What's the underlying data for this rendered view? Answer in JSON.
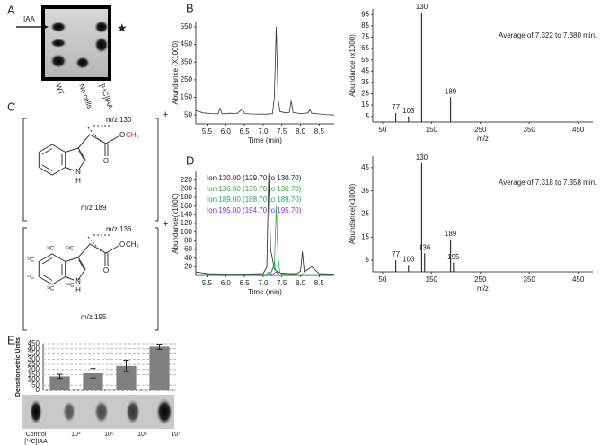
{
  "panel_labels": [
    "A",
    "B",
    "C",
    "D",
    "E"
  ],
  "panel_a": {
    "marker": "IAA",
    "lanes": [
      "WT",
      "No cells",
      "[¹⁴C]IAA"
    ],
    "star": "★"
  },
  "panel_c": {
    "structures": [
      {
        "fragment": "m/z 130",
        "parent": "m/z 189",
        "ester": "O",
        "methyl": "CH₃",
        "carbonyl": "O",
        "n": "N",
        "h": "H",
        "charge": "+"
      },
      {
        "fragment": "m/z 136",
        "parent": "m/z 195",
        "ester": "O",
        "methyl": "CH₃",
        "carbonyl": "O",
        "n": "N",
        "h": "H",
        "charge": "+",
        "isotopes": [
          "¹³C",
          "¹³C",
          "¹³C",
          "¹³C",
          "¹³C",
          "¹³C"
        ]
      }
    ]
  },
  "panel_e": {
    "control": "Control",
    "control_sub": "[¹⁴C]IAA"
  },
  "chart_data": [
    {
      "type": "line",
      "ylabel": "Abundance (X1000)",
      "xlabel": "Time (min)",
      "color": "#333333",
      "x": [
        5.2,
        5.4,
        5.6,
        5.8,
        5.85,
        5.9,
        6.1,
        6.3,
        6.45,
        6.5,
        6.7,
        6.9,
        7.1,
        7.25,
        7.3,
        7.35,
        7.4,
        7.45,
        7.6,
        7.7,
        7.75,
        7.8,
        8.0,
        8.2,
        8.25,
        8.3,
        8.5,
        8.7,
        8.9
      ],
      "values": [
        75,
        62,
        58,
        57,
        90,
        57,
        60,
        58,
        85,
        58,
        56,
        55,
        55,
        58,
        150,
        550,
        140,
        70,
        62,
        65,
        130,
        65,
        58,
        62,
        80,
        60,
        56,
        52,
        50
      ],
      "xlim": [
        5.2,
        8.9
      ],
      "ylim": [
        0,
        580
      ],
      "xticks": [
        5.5,
        {
          "value": 6,
          "label": "6.0"
        },
        6.5,
        {
          "value": 7,
          "label": "7.0"
        },
        7.5,
        {
          "value": 8,
          "label": "8.0"
        },
        8.5
      ],
      "yticks": [
        50,
        150,
        250,
        350,
        450,
        550
      ]
    },
    {
      "type": "stem",
      "ylabel": "Abundance (x1000)",
      "xlabel": "m/z",
      "annotation": "Average of 7.322 to 7.380 min.",
      "color": "#333333",
      "x": [
        77,
        103,
        130,
        189
      ],
      "values": [
        8,
        5,
        97,
        22
      ],
      "xlim": [
        30,
        480
      ],
      "ylim": [
        0,
        100
      ],
      "xticks": [
        50,
        150,
        250,
        350,
        450
      ],
      "yticks": [
        5,
        15,
        25,
        35,
        45,
        55,
        65,
        75,
        85,
        95
      ]
    },
    {
      "type": "line",
      "ylabel": "Abundance(x1000)",
      "xlabel": "Time (min)",
      "x": [
        5.2,
        5.5,
        6.0,
        6.5,
        7.0,
        7.1,
        7.15,
        7.2,
        7.3,
        7.35,
        7.4,
        7.45,
        7.5,
        7.7,
        7.9,
        8.0,
        8.05,
        8.1,
        8.3,
        8.5,
        8.9
      ],
      "series": [
        {
          "name": "Ion 130.00 (129.70 to 130.70)",
          "color": "#222222",
          "values": [
            8,
            4,
            3,
            3,
            4,
            20,
            235,
            60,
            15,
            10,
            8,
            6,
            5,
            4,
            4,
            10,
            55,
            8,
            20,
            4,
            3
          ]
        },
        {
          "name": "Ion 136.00 (135.70 to 136.70)",
          "color": "#2fb02f",
          "values": [
            2,
            2,
            2,
            2,
            2,
            3,
            8,
            5,
            20,
            160,
            40,
            5,
            3,
            2,
            2,
            2,
            3,
            2,
            2,
            2,
            2
          ]
        },
        {
          "name": "Ion 189.00 (188.70 to 189.70)",
          "color": "#1aa58a",
          "values": [
            1,
            1,
            1,
            1,
            1,
            2,
            5,
            3,
            30,
            10,
            3,
            1,
            1,
            1,
            1,
            1,
            2,
            1,
            1,
            1,
            1
          ]
        },
        {
          "name": "Ion 195.00 (194.70 to 195.70)",
          "color": "#8a2be2",
          "values": [
            1,
            1,
            1,
            1,
            1,
            1,
            2,
            2,
            5,
            8,
            3,
            1,
            1,
            1,
            1,
            1,
            1,
            1,
            1,
            1,
            1
          ]
        }
      ],
      "xlim": [
        5.2,
        8.9
      ],
      "ylim": [
        0,
        240
      ],
      "xticks": [
        5.5,
        {
          "value": 6,
          "label": "6.0"
        },
        6.5,
        {
          "value": 7,
          "label": "7.0"
        },
        7.5,
        {
          "value": 8,
          "label": "8.0"
        },
        8.5
      ],
      "yticks": [
        20,
        40,
        60,
        80,
        100,
        120,
        140,
        160,
        180,
        200,
        220
      ]
    },
    {
      "type": "stem",
      "ylabel": "Abundance(x1000)",
      "xlabel": "m/z",
      "annotation": "Average of 7.318 to 7.358 min.",
      "color": "#333333",
      "x": [
        77,
        103,
        130,
        136,
        189,
        195
      ],
      "values": [
        5,
        3,
        47,
        8,
        14,
        4
      ],
      "xlim": [
        30,
        480
      ],
      "ylim": [
        0,
        50
      ],
      "xticks": [
        50,
        150,
        250,
        350,
        450
      ],
      "yticks": [
        5,
        15,
        25,
        35,
        45
      ]
    },
    {
      "type": "bar",
      "ylabel": "Densitometric Units",
      "color": "#808080",
      "grid": true,
      "categories": [
        "10⁴",
        "10⁵",
        "10⁶",
        "10⁷"
      ],
      "values": [
        135,
        165,
        235,
        420
      ],
      "errors": [
        20,
        45,
        55,
        25
      ],
      "ylim": [
        0,
        450
      ],
      "yticks": [
        0,
        50,
        100,
        150,
        200,
        250,
        300,
        350,
        400,
        450
      ]
    }
  ]
}
